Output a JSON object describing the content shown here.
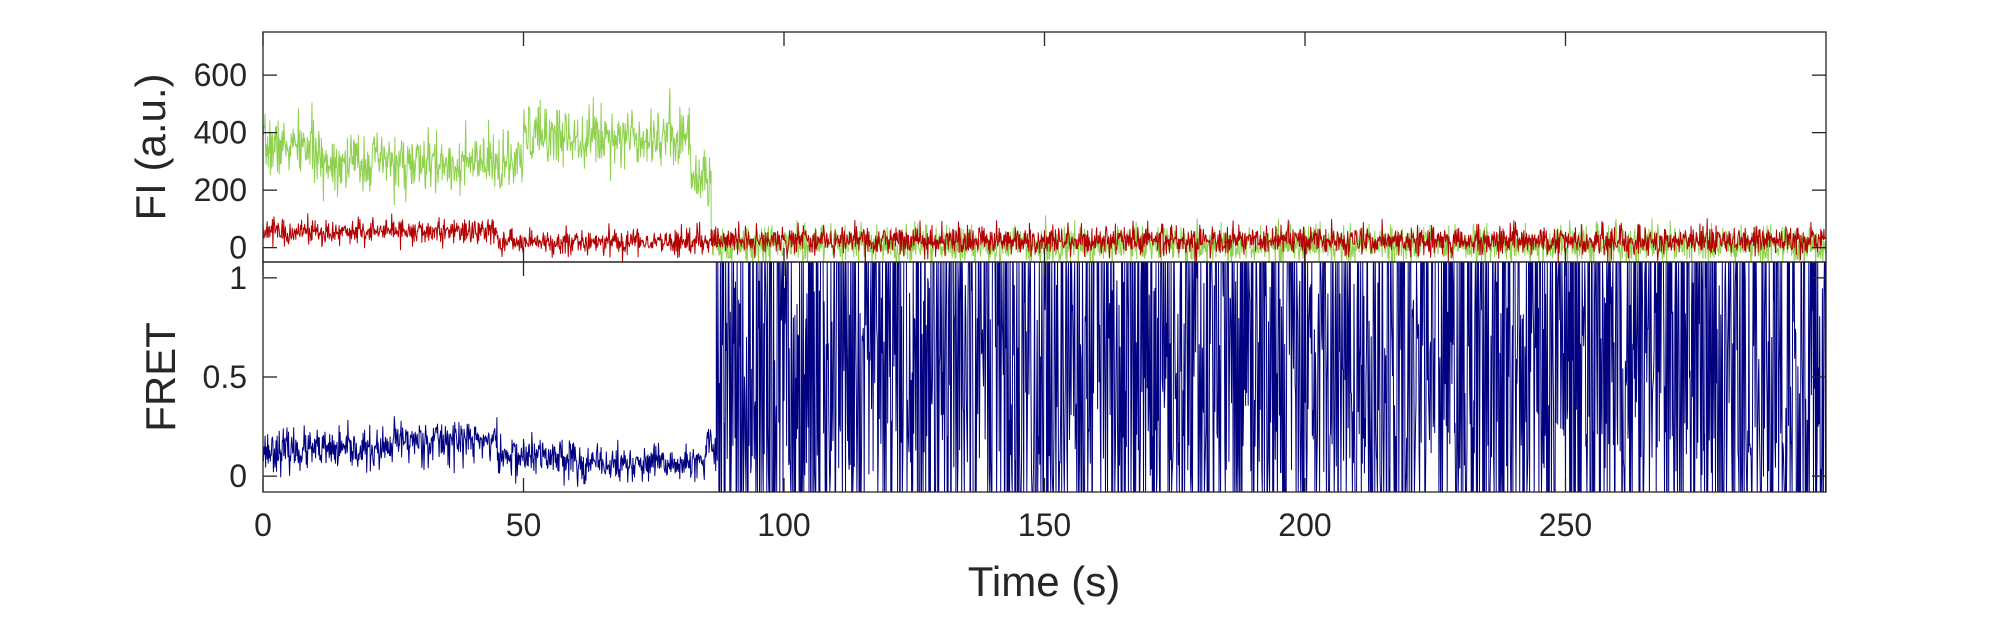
{
  "chart_data": [
    {
      "type": "line",
      "panel": "top",
      "ylabel": "FI (a.u.)",
      "xlim": [
        0,
        300
      ],
      "ylim": [
        -50,
        750
      ],
      "yticks": [
        0,
        200,
        400,
        600
      ],
      "ytick_labels": [
        "0",
        "200",
        "400",
        "600"
      ],
      "grid": false,
      "colors": {
        "donor": "#8fd14f",
        "acceptor": "#b30000"
      },
      "series": [
        {
          "color": "#8fd14f",
          "segments": [
            {
              "x_start": 0,
              "x_end": 10,
              "mean": 350,
              "noise": 90
            },
            {
              "x_start": 10,
              "x_end": 25,
              "mean": 300,
              "noise": 90
            },
            {
              "x_start": 25,
              "x_end": 50,
              "mean": 290,
              "noise": 90
            },
            {
              "x_start": 50,
              "x_end": 82,
              "mean": 390,
              "noise": 95
            },
            {
              "x_start": 82,
              "x_end": 86,
              "mean": 250,
              "noise": 95
            },
            {
              "x_start": 86,
              "x_end": 300,
              "mean": 10,
              "noise": 60
            }
          ]
        },
        {
          "color": "#b30000",
          "segments": [
            {
              "x_start": 0,
              "x_end": 45,
              "mean": 55,
              "noise": 40
            },
            {
              "x_start": 45,
              "x_end": 86,
              "mean": 20,
              "noise": 40
            },
            {
              "x_start": 86,
              "x_end": 300,
              "mean": 25,
              "noise": 45
            }
          ]
        }
      ]
    },
    {
      "type": "line",
      "panel": "bottom",
      "ylabel": "FRET",
      "xlabel": "Time (s)",
      "xlim": [
        0,
        300
      ],
      "ylim": [
        -0.08,
        1.08
      ],
      "yticks": [
        0,
        0.5,
        1
      ],
      "ytick_labels": [
        "0",
        "0.5",
        "1"
      ],
      "xticks": [
        0,
        50,
        100,
        150,
        200,
        250
      ],
      "xtick_labels": [
        "0",
        "50",
        "100",
        "150",
        "200",
        "250"
      ],
      "grid": false,
      "colors": {
        "fret": "#000080"
      },
      "series": [
        {
          "color": "#000080",
          "segments": [
            {
              "x_start": 0,
              "x_end": 25,
              "mean": 0.13,
              "noise": 0.09
            },
            {
              "x_start": 25,
              "x_end": 45,
              "mean": 0.18,
              "noise": 0.1
            },
            {
              "x_start": 45,
              "x_end": 60,
              "mean": 0.1,
              "noise": 0.09
            },
            {
              "x_start": 60,
              "x_end": 85,
              "mean": 0.06,
              "noise": 0.08
            },
            {
              "x_start": 85,
              "x_end": 87,
              "mean": 0.15,
              "noise": 0.1
            },
            {
              "x_start": 87,
              "x_end": 300,
              "mean": 0.5,
              "noise": 0.55
            }
          ]
        }
      ]
    }
  ]
}
